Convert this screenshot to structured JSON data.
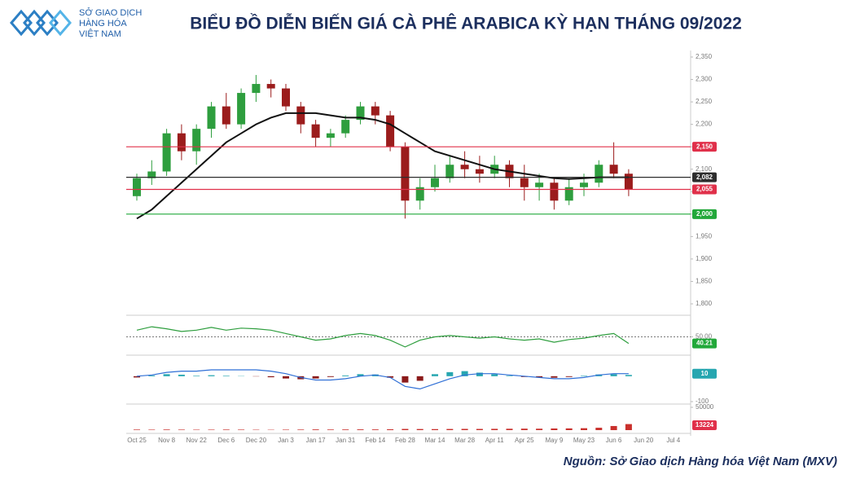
{
  "header": {
    "logo_lines": [
      "SỞ GIAO DỊCH",
      "HÀNG HÓA",
      "VIỆT NAM"
    ]
  },
  "source": "Nguồn: Sở Giao dịch Hàng hóa Việt Nam (MXV)",
  "chart_data": [
    {
      "type": "candlestick",
      "title": "BIỂU ĐỒ DIỄN BIẾN GIÁ CÀ PHÊ ARABICA KỲ HẠN THÁNG 09/2022",
      "categories": [
        "Oct 25",
        null,
        "Nov 8",
        null,
        "Nov 22",
        null,
        "Dec 6",
        null,
        "Dec 20",
        null,
        "Jan 3",
        null,
        "Jan 17",
        null,
        "Jan 31",
        null,
        "Feb 14",
        null,
        "Feb 28",
        null,
        "Mar 14",
        null,
        "Mar 28",
        null,
        "Apr 11",
        null,
        "Apr 25",
        null,
        "May 9",
        null,
        "May 23",
        null,
        "Jun 6",
        null,
        "Jun 20",
        null,
        "Jul 4"
      ],
      "open": [
        2040,
        2080,
        2095,
        2180,
        2140,
        2190,
        2240,
        2200,
        2270,
        2290,
        2280,
        2240,
        2200,
        2170,
        2180,
        2210,
        2240,
        2220,
        2150,
        2030,
        2060,
        2080,
        2110,
        2100,
        2090,
        2110,
        2080,
        2060,
        2070,
        2030,
        2060,
        2070,
        2110,
        2090,
        null,
        null,
        null
      ],
      "high": [
        2090,
        2120,
        2190,
        2200,
        2200,
        2250,
        2270,
        2280,
        2310,
        2300,
        2290,
        2250,
        2210,
        2190,
        2220,
        2250,
        2250,
        2230,
        2160,
        2080,
        2110,
        2130,
        2140,
        2130,
        2130,
        2120,
        2110,
        2090,
        2080,
        2080,
        2090,
        2120,
        2160,
        2100,
        null,
        null,
        null
      ],
      "low": [
        2030,
        2065,
        2085,
        2120,
        2110,
        2170,
        2190,
        2190,
        2250,
        2260,
        2230,
        2180,
        2150,
        2150,
        2170,
        2200,
        2200,
        2140,
        1990,
        2010,
        2050,
        2070,
        2080,
        2070,
        2080,
        2060,
        2030,
        2030,
        2010,
        2020,
        2040,
        2060,
        2080,
        2040,
        null,
        null,
        null
      ],
      "close": [
        2080,
        2095,
        2180,
        2140,
        2190,
        2240,
        2200,
        2270,
        2290,
        2280,
        2240,
        2200,
        2170,
        2180,
        2210,
        2240,
        2220,
        2150,
        2030,
        2060,
        2080,
        2110,
        2100,
        2090,
        2110,
        2080,
        2060,
        2070,
        2030,
        2060,
        2070,
        2110,
        2090,
        2055,
        null,
        null,
        null
      ],
      "up_color": "#2e9e3e",
      "down_color": "#9b1c1c",
      "ma_values": [
        1990,
        2010,
        2040,
        2070,
        2100,
        2130,
        2160,
        2180,
        2200,
        2215,
        2225,
        2225,
        2225,
        2220,
        2215,
        2215,
        2210,
        2200,
        2180,
        2160,
        2140,
        2130,
        2120,
        2110,
        2100,
        2095,
        2090,
        2085,
        2080,
        2078,
        2080,
        2082,
        2082,
        2082,
        null,
        null,
        null
      ],
      "ma_color": "#111111",
      "levels": [
        {
          "value": 2150,
          "label": "2,150",
          "color": "#e0304a"
        },
        {
          "value": 2082,
          "label": "2,082",
          "color": "#2d2d2d"
        },
        {
          "value": 2055,
          "label": "2,055",
          "color": "#e0304a"
        },
        {
          "value": 2000,
          "label": "2,000",
          "color": "#22a83a"
        }
      ],
      "ylim": [
        1800,
        2350
      ],
      "yticks": [
        {
          "value": 1800,
          "label": "1,800"
        },
        {
          "value": 1850,
          "label": "1,850"
        },
        {
          "value": 1900,
          "label": "1,900"
        },
        {
          "value": 1950,
          "label": "1,950"
        },
        {
          "value": 2000,
          "label": "2,000"
        },
        {
          "value": 2050,
          "label": "2,050"
        },
        {
          "value": 2100,
          "label": "2,100"
        },
        {
          "value": 2150,
          "label": "2,150"
        },
        {
          "value": 2200,
          "label": "2,200"
        },
        {
          "value": 2250,
          "label": "2,250"
        },
        {
          "value": 2300,
          "label": "2,300"
        },
        {
          "value": 2350,
          "label": "2,350"
        }
      ]
    },
    {
      "type": "line",
      "values": [
        60,
        65,
        62,
        58,
        60,
        64,
        60,
        63,
        62,
        60,
        55,
        50,
        45,
        47,
        52,
        55,
        52,
        45,
        35,
        45,
        50,
        52,
        50,
        48,
        50,
        47,
        45,
        47,
        42,
        46,
        48,
        52,
        55,
        40.21,
        null,
        null,
        null
      ],
      "color": "#2e9e3e",
      "last_value": 40.21,
      "tag_color": "#22a83a",
      "ylim": [
        30,
        70
      ],
      "yticks": [
        {
          "value": 50,
          "label": "50.00"
        }
      ]
    },
    {
      "type": "macd",
      "values": [
        0,
        5,
        15,
        20,
        20,
        25,
        25,
        25,
        25,
        20,
        10,
        -5,
        -15,
        -15,
        -10,
        0,
        5,
        -5,
        -40,
        -50,
        -30,
        -10,
        5,
        10,
        10,
        5,
        0,
        -5,
        -10,
        -10,
        -5,
        5,
        10,
        10,
        null,
        null,
        null
      ],
      "histogram": [
        -5,
        3,
        8,
        6,
        2,
        4,
        2,
        1,
        -1,
        -4,
        -9,
        -12,
        -9,
        -3,
        3,
        8,
        7,
        -6,
        -25,
        -18,
        8,
        16,
        20,
        14,
        8,
        2,
        -3,
        -5,
        -6,
        -3,
        2,
        7,
        8,
        5,
        null,
        null,
        null
      ],
      "color": "#2f6fd6",
      "up_color": "#26a6b0",
      "down_color": "#8b1a1a",
      "last_value": 10,
      "tag_color": "#26a6b0",
      "ylim": [
        -100,
        70
      ],
      "yticks": [
        -100
      ]
    },
    {
      "type": "bar",
      "values": [
        1200,
        1000,
        1300,
        1100,
        900,
        1000,
        1200,
        1100,
        800,
        700,
        1000,
        1200,
        1500,
        1300,
        1400,
        1600,
        1500,
        1800,
        2600,
        2400,
        2200,
        2500,
        2700,
        2600,
        2800,
        3000,
        3200,
        3100,
        3600,
        3800,
        4200,
        5200,
        9000,
        13224,
        null,
        null,
        null
      ],
      "color": "#c9302c",
      "last_value": 13224,
      "tag_color": "#e0304a",
      "ylim": [
        0,
        50000
      ],
      "yticks": [
        50000
      ]
    }
  ]
}
